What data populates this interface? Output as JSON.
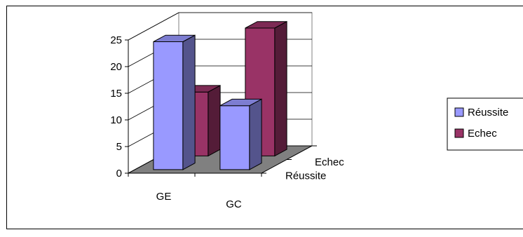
{
  "chart_data": {
    "type": "bar",
    "subtype": "3d-column",
    "categories": [
      "GE",
      "GC"
    ],
    "depth_categories": [
      "Réussite",
      "Echec"
    ],
    "series": [
      {
        "name": "Réussite",
        "values": [
          24,
          12
        ],
        "color": "#9999FF"
      },
      {
        "name": "Echec",
        "values": [
          12,
          24
        ],
        "color": "#993366"
      }
    ],
    "y_ticks": [
      "0",
      "5",
      "10",
      "15",
      "20",
      "25"
    ],
    "ylim": [
      0,
      25
    ],
    "legend_position": "right",
    "wall_color": "#ffffff",
    "floor_color": "#808080"
  }
}
